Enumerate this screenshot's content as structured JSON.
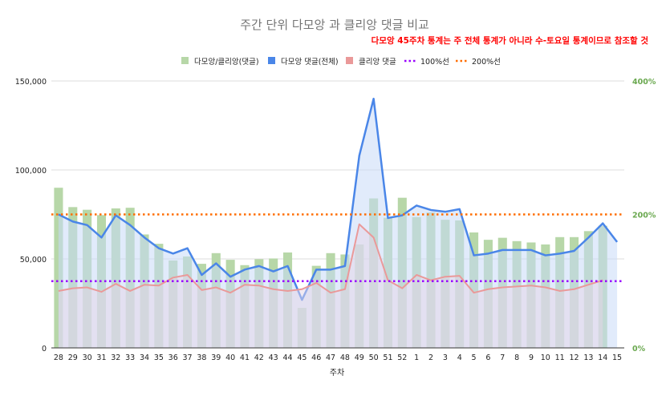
{
  "chart_data": {
    "type": "bar",
    "title": "주간 단위 다모앙 과 클리앙 댓글 비교",
    "annotation": "다모앙 45주차 통계는 주 전체 통계가 아니라 수-토요일 통계이므로 참조할 것",
    "xlabel": "주차",
    "ylabel": "",
    "categories": [
      "28",
      "29",
      "30",
      "31",
      "32",
      "33",
      "34",
      "35",
      "36",
      "37",
      "38",
      "39",
      "40",
      "41",
      "42",
      "43",
      "44",
      "45",
      "46",
      "47",
      "48",
      "49",
      "50",
      "51",
      "52",
      "1",
      "2",
      "3",
      "4",
      "5",
      "6",
      "7",
      "8",
      "9",
      "10",
      "11",
      "12",
      "13",
      "14",
      "15"
    ],
    "y_left": {
      "min": 0,
      "max": 150000,
      "ticks": [
        "0",
        "50,000",
        "100,000",
        "150,000"
      ]
    },
    "y_right": {
      "min": 0,
      "max": 4,
      "ticks": [
        "0%",
        "200%",
        "400%"
      ]
    },
    "grid": true,
    "legend_position": "top",
    "colors": {
      "ratio_bar": "#b7d7a8",
      "damoang_line": "#4a86e8",
      "damoang_fill": "#c9daf8",
      "clien_line": "#ea9999",
      "clien_fill": "#e6d5e8",
      "ref100": "#9900ff",
      "ref200": "#ff6d01",
      "right_axis": "#6aa84f",
      "annotation": "#ff0000"
    },
    "series": [
      {
        "name": "다모앙/클리앙(댓글)",
        "kind": "bar",
        "axis": "right",
        "values": [
          2.4,
          2.11,
          2.07,
          1.99,
          2.09,
          2.1,
          1.7,
          1.56,
          1.31,
          1.37,
          1.26,
          1.42,
          1.32,
          1.24,
          1.33,
          1.34,
          1.43,
          0.6,
          1.23,
          1.42,
          1.4,
          1.55,
          2.24,
          1.95,
          2.25,
          1.96,
          2.03,
          1.92,
          1.91,
          1.73,
          1.62,
          1.65,
          1.6,
          1.58,
          1.55,
          1.66,
          1.66,
          1.75,
          1.83,
          null
        ]
      },
      {
        "name": "다모앙 댓글(전체)",
        "kind": "area",
        "axis": "left",
        "values": [
          75000,
          71000,
          69000,
          62000,
          74500,
          69000,
          62000,
          56000,
          53000,
          56000,
          41000,
          47500,
          40000,
          44000,
          46000,
          43000,
          46000,
          27000,
          44000,
          44000,
          46000,
          108000,
          140000,
          73000,
          74500,
          80000,
          77500,
          76500,
          78000,
          52000,
          53000,
          55000,
          55000,
          55000,
          52000,
          53000,
          54500,
          62000,
          70000,
          59500
        ]
      },
      {
        "name": "클리앙 댓글",
        "kind": "area",
        "axis": "left",
        "values": [
          32000,
          33500,
          34000,
          31500,
          36000,
          32000,
          35500,
          35000,
          39500,
          41000,
          32500,
          34000,
          31000,
          35500,
          35000,
          33000,
          32000,
          33000,
          36500,
          31000,
          33000,
          69500,
          62000,
          38000,
          33500,
          41000,
          38000,
          40000,
          40500,
          31000,
          33000,
          34000,
          34500,
          35000,
          34000,
          32000,
          33000,
          35500,
          38000,
          null
        ]
      },
      {
        "name": "100%선",
        "kind": "reference",
        "axis": "right",
        "value": 1.0
      },
      {
        "name": "200%선",
        "kind": "reference",
        "axis": "right",
        "value": 2.0
      }
    ]
  }
}
